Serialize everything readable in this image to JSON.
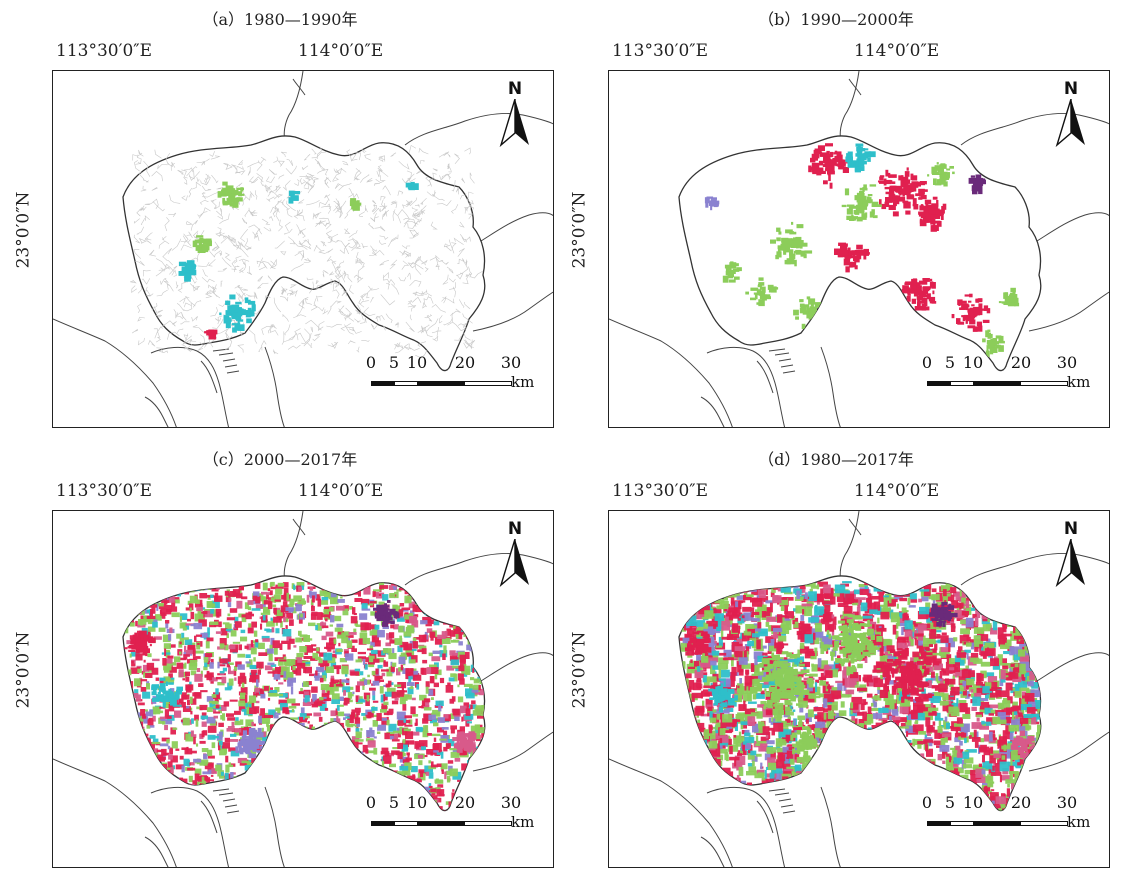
{
  "labels": {
    "lon_left": "113°30′0″E",
    "lon_right": "114°0′0″E",
    "lat": "23°0′0″N",
    "north": "N",
    "scale_ticks": [
      "0",
      "5",
      "10",
      "20",
      "30"
    ],
    "scale_unit": "km"
  },
  "panels": [
    {
      "title": "（a）1980—1990年"
    },
    {
      "title": "（b）1990—2000年"
    },
    {
      "title": "（c）2000—2017年"
    },
    {
      "title": "（d）1980—2017年"
    }
  ],
  "colors": {
    "green": "#8ccd5a",
    "red": "#e0204f",
    "cyan": "#2ebfca",
    "purple": "#8a82d0",
    "dark_purple": "#6a2a7a",
    "pink": "#d85a8a",
    "outline": "#333333"
  }
}
